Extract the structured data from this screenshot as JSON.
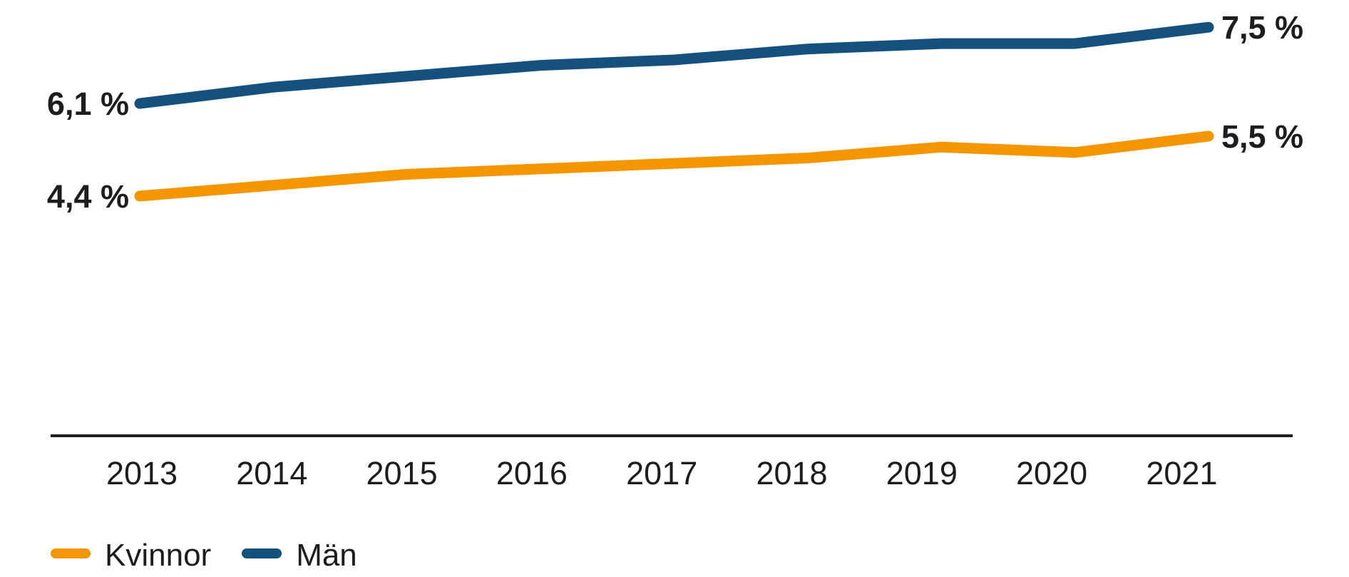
{
  "chart_data": {
    "type": "line",
    "x": [
      "2013",
      "2014",
      "2015",
      "2016",
      "2017",
      "2018",
      "2019",
      "2020",
      "2021"
    ],
    "series": [
      {
        "name": "Kvinnor",
        "color": "#f49600",
        "values": [
          4.4,
          4.6,
          4.8,
          4.9,
          5.0,
          5.1,
          5.3,
          5.2,
          5.5
        ],
        "start_label": "4,4 %",
        "end_label": "5,5 %"
      },
      {
        "name": "Män",
        "color": "#15517d",
        "values": [
          6.1,
          6.4,
          6.6,
          6.8,
          6.9,
          7.1,
          7.2,
          7.2,
          7.5
        ],
        "start_label": "6,1 %",
        "end_label": "7,5 %"
      }
    ],
    "title": "",
    "xlabel": "",
    "ylabel": "",
    "ylim": [
      0,
      8
    ],
    "grid": false,
    "legend_position": "bottom-left",
    "text_color": "#1d1d1b",
    "axis_color": "#1d1d1b"
  }
}
